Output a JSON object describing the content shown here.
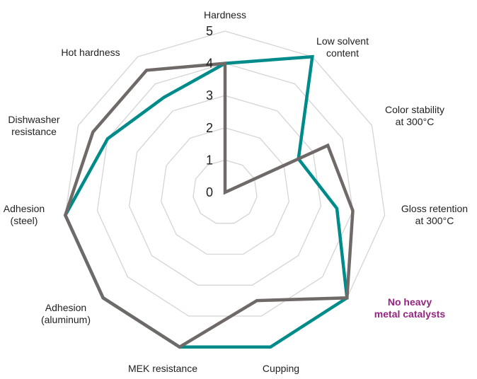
{
  "chart_data": {
    "type": "radar",
    "title": "",
    "axes": [
      {
        "lines": [
          "Hardness"
        ]
      },
      {
        "lines": [
          "Low solvent",
          "content"
        ]
      },
      {
        "lines": [
          "Color stability",
          "at 300°C"
        ]
      },
      {
        "lines": [
          "Gloss retention",
          "at 300°C"
        ]
      },
      {
        "lines": [
          "No heavy",
          "metal catalysts"
        ],
        "highlight": true
      },
      {
        "lines": [
          "Cupping"
        ]
      },
      {
        "lines": [
          "MEK resistance"
        ]
      },
      {
        "lines": [
          "Adhesion",
          "(aluminum)"
        ]
      },
      {
        "lines": [
          "Adhesion",
          "(steel)"
        ]
      },
      {
        "lines": [
          "Dishwasher",
          "resistance"
        ]
      },
      {
        "lines": [
          "Hot hardness"
        ]
      }
    ],
    "rlim": [
      0,
      5
    ],
    "ticks": [
      "0",
      "1",
      "2",
      "3",
      "4",
      "5"
    ],
    "grid": true,
    "legend": "none",
    "series": [
      {
        "color": "#008b8b",
        "values": [
          4,
          5,
          2.5,
          3.5,
          5,
          5,
          5,
          5,
          5,
          4,
          3.5
        ]
      },
      {
        "color": "#6f6a68",
        "values": [
          4,
          0,
          3.5,
          4,
          5,
          3.5,
          5,
          5,
          5,
          4.5,
          4.5
        ]
      }
    ],
    "highlight_color": "#93257f",
    "grid_color": "#d4d4d4"
  }
}
